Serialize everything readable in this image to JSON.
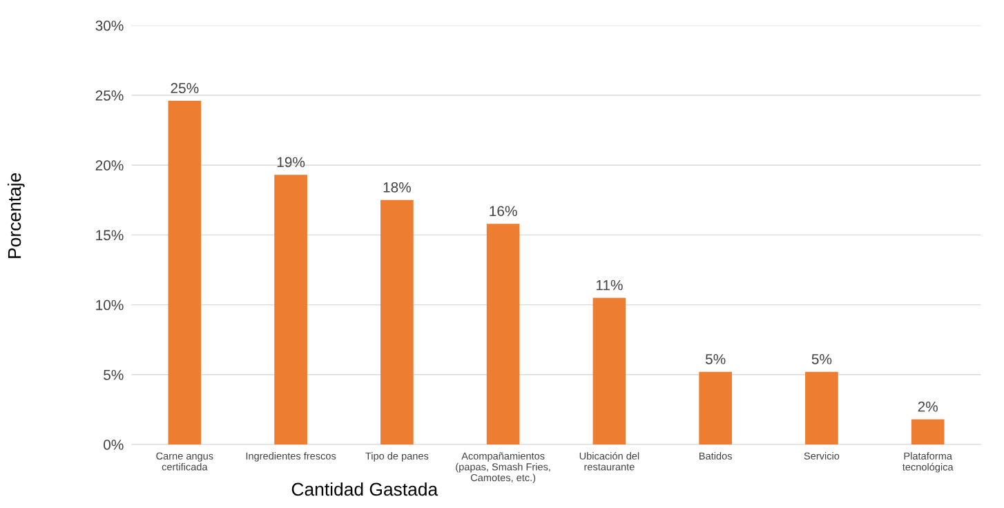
{
  "chart_data": {
    "type": "bar",
    "xlabel": "Cantidad Gastada",
    "ylabel": "Porcentaje",
    "categories": [
      "Carne angus\ncertificada",
      "Ingredientes frescos",
      "Tipo de panes",
      "Acompañamientos\n(papas, Smash Fries,\nCamotes, etc.)",
      "Ubicación del\nrestaurante",
      "Batidos",
      "Servicio",
      "Plataforma\ntecnológica"
    ],
    "values": [
      24.6,
      19.3,
      17.5,
      15.8,
      10.5,
      5.2,
      5.2,
      1.8
    ],
    "value_labels": [
      "25%",
      "19%",
      "18%",
      "16%",
      "11%",
      "5%",
      "5%",
      "2%"
    ],
    "color": "#ed7d31",
    "ylim": [
      0,
      30
    ],
    "yticks": [
      {
        "value": 0,
        "label": "0%"
      },
      {
        "value": 5,
        "label": "5%"
      },
      {
        "value": 10,
        "label": "10%"
      },
      {
        "value": 15,
        "label": "15%"
      },
      {
        "value": 20,
        "label": "20%"
      },
      {
        "value": 25,
        "label": "25%"
      },
      {
        "value": 30,
        "label": "30%"
      }
    ],
    "grid": "y"
  }
}
